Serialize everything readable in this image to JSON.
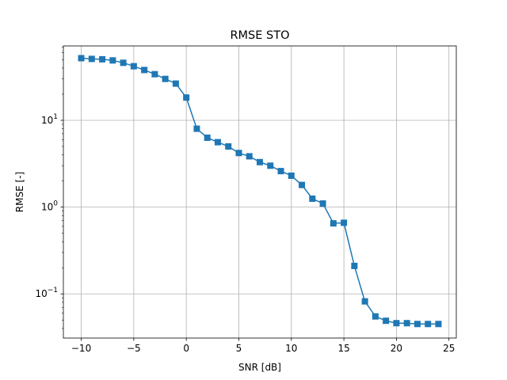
{
  "chart_data": {
    "type": "line",
    "title": "RMSE STO",
    "xlabel": "SNR [dB]",
    "ylabel": "RMSE [-]",
    "xlim": [
      -11.7,
      25.7
    ],
    "ylim": [
      0.031,
      72
    ],
    "yscale": "log",
    "grid": true,
    "x_ticks": [
      -10,
      -5,
      0,
      5,
      10,
      15,
      20,
      25
    ],
    "x_tick_labels": [
      "−10",
      "−5",
      "0",
      "5",
      "10",
      "15",
      "20",
      "25"
    ],
    "y_ticks": [
      0.1,
      1,
      10
    ],
    "y_tick_labels": [
      {
        "base": "10",
        "exp": "−1"
      },
      {
        "base": "10",
        "exp": "0"
      },
      {
        "base": "10",
        "exp": "1"
      }
    ],
    "line_color": "#1f77b4",
    "marker": "square",
    "series": [
      {
        "x": [
          -10,
          -9,
          -8,
          -7,
          -6,
          -5,
          -4,
          -3,
          -2,
          -1,
          0,
          1,
          2,
          3,
          4,
          5,
          6,
          7,
          8,
          9,
          10,
          11,
          12,
          13,
          14,
          15,
          16,
          17,
          18,
          19,
          20,
          21,
          22,
          23,
          24
        ],
        "values": [
          52,
          51,
          50.5,
          49,
          46,
          42,
          38,
          34,
          30,
          26.5,
          18.3,
          8.0,
          6.3,
          5.6,
          5.0,
          4.2,
          3.85,
          3.3,
          3.0,
          2.6,
          2.3,
          1.8,
          1.25,
          1.1,
          0.65,
          0.66,
          0.21,
          0.082,
          0.055,
          0.049,
          0.046,
          0.046,
          0.045,
          0.045,
          0.045
        ]
      }
    ]
  }
}
